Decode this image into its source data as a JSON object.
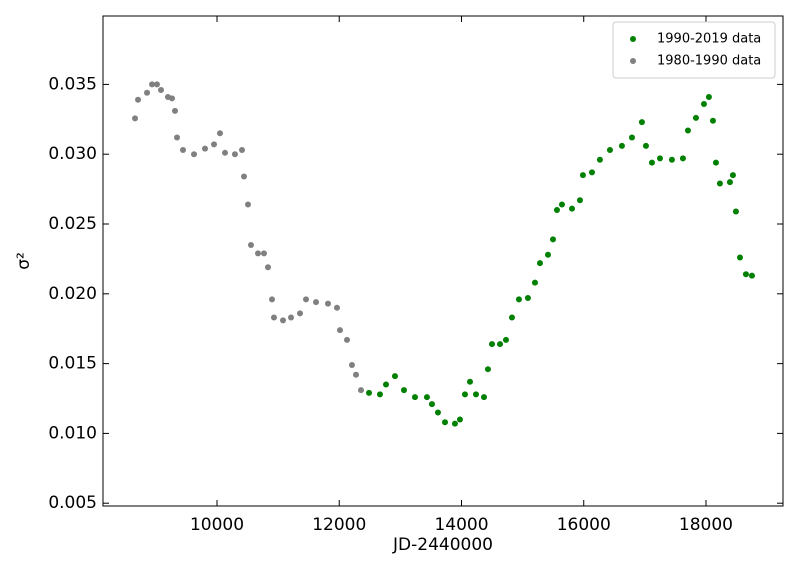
{
  "chart_data": {
    "type": "scatter",
    "xlabel": "JD-2440000",
    "ylabel": "σ²",
    "xlim": [
      8135,
      19260
    ],
    "ylim": [
      0.0048,
      0.0399
    ],
    "xticks": [
      10000,
      12000,
      14000,
      16000,
      18000
    ],
    "yticks": [
      {
        "value": 0.005,
        "label": "0.005"
      },
      {
        "value": 0.01,
        "label": "0.010"
      },
      {
        "value": 0.015,
        "label": "0.015"
      },
      {
        "value": 0.02,
        "label": "0.020"
      },
      {
        "value": 0.025,
        "label": "0.025"
      },
      {
        "value": 0.03,
        "label": "0.030"
      },
      {
        "value": 0.035,
        "label": "0.035"
      }
    ],
    "grid": false,
    "legend": "upper right",
    "series": [
      {
        "name": "1990-2019 data",
        "color": "#008000",
        "x": [
          12487,
          12666,
          12765,
          12912,
          13059,
          13239,
          13435,
          13517,
          13615,
          13730,
          13893,
          13975,
          14057,
          14139,
          14237,
          14368,
          14433,
          14499,
          14630,
          14728,
          14826,
          14940,
          15087,
          15202,
          15284,
          15415,
          15497,
          15562,
          15644,
          15808,
          15938,
          15987,
          16135,
          16265,
          16429,
          16625,
          16789,
          16952,
          17018,
          17116,
          17247,
          17443,
          17623,
          17705,
          17836,
          17967,
          18048,
          18114,
          18163,
          18228,
          18392,
          18441,
          18490,
          18556,
          18654,
          18752
        ],
        "values": [
          0.0129,
          0.0128,
          0.0135,
          0.0141,
          0.0131,
          0.0126,
          0.0126,
          0.0121,
          0.0115,
          0.0108,
          0.0107,
          0.011,
          0.0128,
          0.0137,
          0.0128,
          0.0126,
          0.0146,
          0.0164,
          0.0164,
          0.0167,
          0.0183,
          0.0196,
          0.0197,
          0.0208,
          0.0222,
          0.0228,
          0.0239,
          0.026,
          0.0264,
          0.0261,
          0.0267,
          0.0285,
          0.0287,
          0.0296,
          0.0303,
          0.0306,
          0.0312,
          0.0323,
          0.0306,
          0.0294,
          0.0297,
          0.0296,
          0.0297,
          0.0317,
          0.0326,
          0.0336,
          0.0341,
          0.0324,
          0.0294,
          0.0279,
          0.028,
          0.0285,
          0.0259,
          0.0226,
          0.0214,
          0.0213
        ]
      },
      {
        "name": "1980-1990 data",
        "color": "#808080",
        "x": [
          8659,
          8708,
          8855,
          8937,
          9018,
          9084,
          9198,
          9264,
          9313,
          9346,
          9444,
          9624,
          9804,
          9951,
          10049,
          10131,
          10294,
          10409,
          10442,
          10507,
          10556,
          10671,
          10769,
          10834,
          10900,
          10932,
          11080,
          11211,
          11358,
          11456,
          11620,
          11816,
          11963,
          12012,
          12127,
          12208,
          12274,
          12356
        ],
        "values": [
          0.03257,
          0.0339,
          0.0344,
          0.035,
          0.035,
          0.0346,
          0.0341,
          0.034,
          0.0331,
          0.0312,
          0.0303,
          0.03,
          0.0304,
          0.0307,
          0.0315,
          0.0301,
          0.03,
          0.0303,
          0.0284,
          0.0264,
          0.0235,
          0.0229,
          0.0229,
          0.0219,
          0.0196,
          0.0183,
          0.0181,
          0.0183,
          0.0186,
          0.0196,
          0.0194,
          0.0193,
          0.019,
          0.0174,
          0.0167,
          0.0149,
          0.0142,
          0.0131
        ]
      }
    ]
  }
}
